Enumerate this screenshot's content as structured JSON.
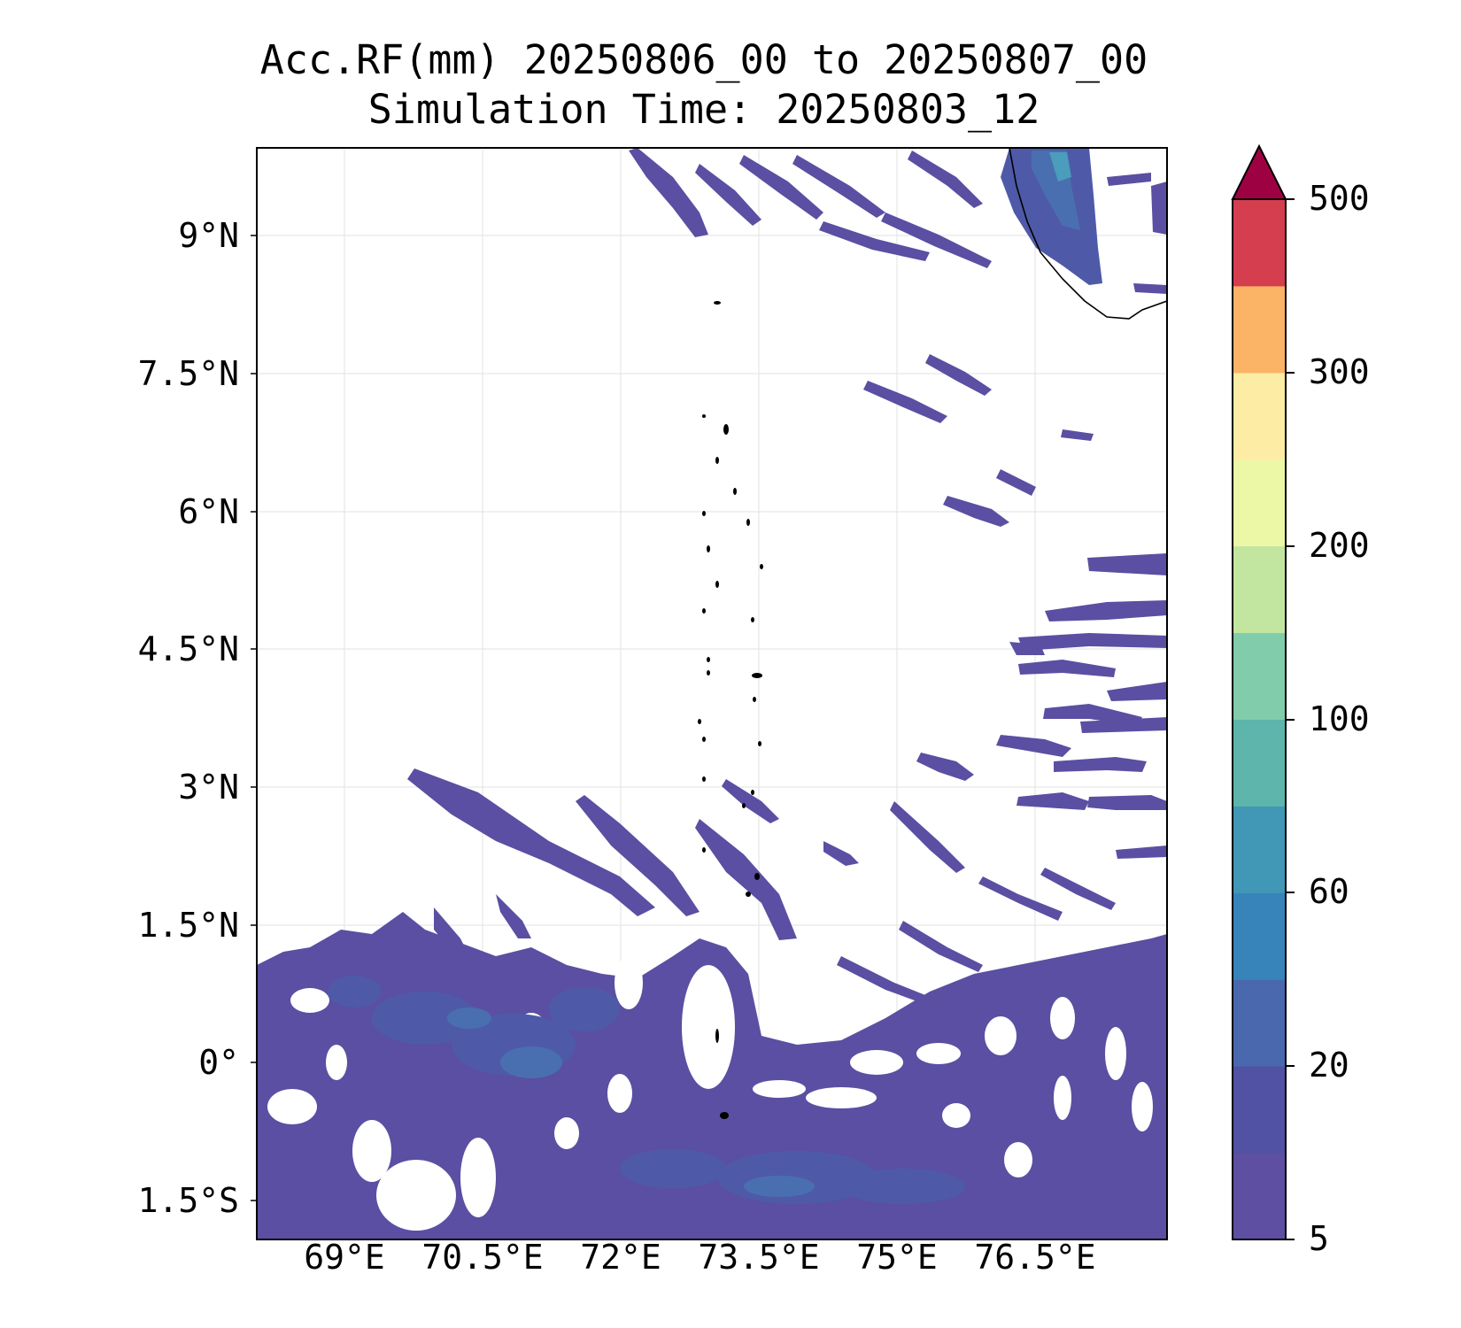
{
  "title": {
    "line1": "Acc.RF(mm) 20250806_00 to 20250807_00",
    "line2": "Simulation Time: 20250803_12"
  },
  "axes": {
    "lat_ticks": [
      "9°N",
      "7.5°N",
      "6°N",
      "4.5°N",
      "3°N",
      "1.5°N",
      "0°",
      "1.5°S"
    ],
    "lon_ticks": [
      "69°E",
      "70.5°E",
      "72°E",
      "73.5°E",
      "75°E",
      "76.5°E"
    ]
  },
  "colorbar": {
    "tick_labels": [
      "5",
      "20",
      "60",
      "100",
      "200",
      "300",
      "500"
    ],
    "colors": [
      "#5e4fa2",
      "#5152a3",
      "#4a68ae",
      "#3784bb",
      "#4198b6",
      "#5db5ab",
      "#81ccab",
      "#c2e69f",
      "#edf8a7",
      "#fdeca4",
      "#fbb365",
      "#d53e4f",
      "#9e0142"
    ],
    "extend": "max"
  },
  "map": {
    "grid": true,
    "coastline": "black",
    "rain_colors": {
      "light": "#5a4fa2",
      "moderate": "#4e5aa8",
      "heavy": "#4a6fb0",
      "peak": "#4a9dbb"
    }
  }
}
